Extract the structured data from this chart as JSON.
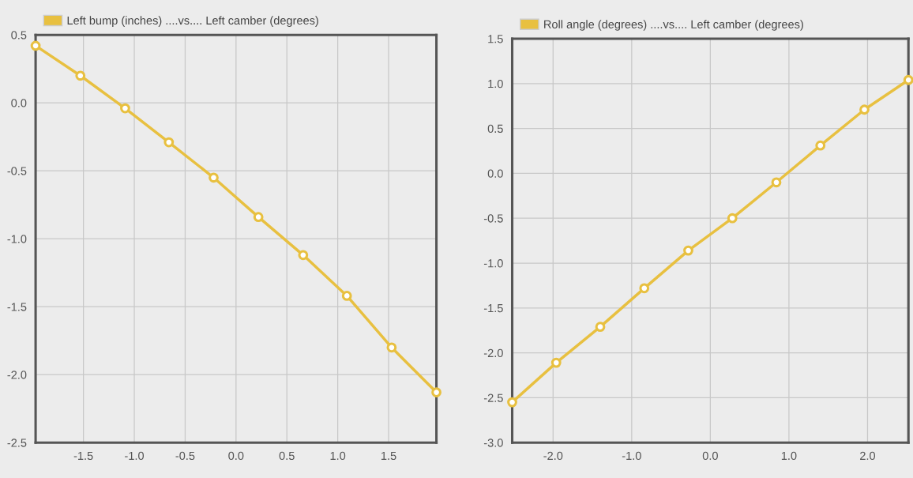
{
  "chart_data": [
    {
      "type": "line",
      "x": [
        -1.97,
        -1.53,
        -1.09,
        -0.66,
        -0.22,
        0.22,
        0.66,
        1.09,
        1.53,
        1.97
      ],
      "series": [
        {
          "name": "Left bump (inches) ....vs.... Left camber (degrees)",
          "color": "#e8c040",
          "values": [
            0.42,
            0.2,
            -0.04,
            -0.29,
            -0.55,
            -0.84,
            -1.12,
            -1.42,
            -1.8,
            -2.13
          ]
        }
      ],
      "xlim": [
        -1.97,
        1.97
      ],
      "ylim": [
        -2.5,
        0.5
      ],
      "xticks": [
        -1.5,
        {
          "value": -1,
          "label": "-1.0"
        },
        -0.5,
        {
          "value": 0,
          "label": "0.0"
        },
        0.5,
        {
          "value": 1,
          "label": "1.0"
        },
        1.5
      ],
      "yticks": [
        -2.5,
        {
          "value": -2,
          "label": "-2.0"
        },
        -1.5,
        {
          "value": -1,
          "label": "-1.0"
        },
        -0.5,
        {
          "value": 0,
          "label": "0.0"
        },
        0.5
      ],
      "grid": true,
      "legend": "top left",
      "marker": "circle",
      "line_style": "solid"
    },
    {
      "type": "line",
      "x": [
        -2.52,
        -1.96,
        -1.4,
        -0.84,
        -0.28,
        0.28,
        0.84,
        1.4,
        1.96,
        2.52
      ],
      "series": [
        {
          "name": "Roll angle (degrees) ....vs.... Left camber (degrees)",
          "color": "#e8c040",
          "values": [
            -2.55,
            -2.11,
            -1.71,
            -1.28,
            -0.86,
            -0.5,
            -0.1,
            0.31,
            0.71,
            1.04
          ]
        }
      ],
      "xlim": [
        -2.52,
        2.52
      ],
      "ylim": [
        -3.0,
        1.5
      ],
      "xticks": [
        {
          "value": -2,
          "label": "-2.0"
        },
        {
          "value": -1,
          "label": "-1.0"
        },
        {
          "value": 0,
          "label": "0.0"
        },
        {
          "value": 1,
          "label": "1.0"
        },
        {
          "value": 2,
          "label": "2.0"
        }
      ],
      "yticks": [
        {
          "value": -3,
          "label": "-3.0"
        },
        -2.5,
        {
          "value": -2,
          "label": "-2.0"
        },
        -1.5,
        {
          "value": -1,
          "label": "-1.0"
        },
        -0.5,
        {
          "value": 0,
          "label": "0.0"
        },
        0.5,
        {
          "value": 1,
          "label": "1.0"
        },
        1.5
      ],
      "grid": true,
      "legend": "top left",
      "marker": "circle",
      "line_style": "solid"
    }
  ]
}
